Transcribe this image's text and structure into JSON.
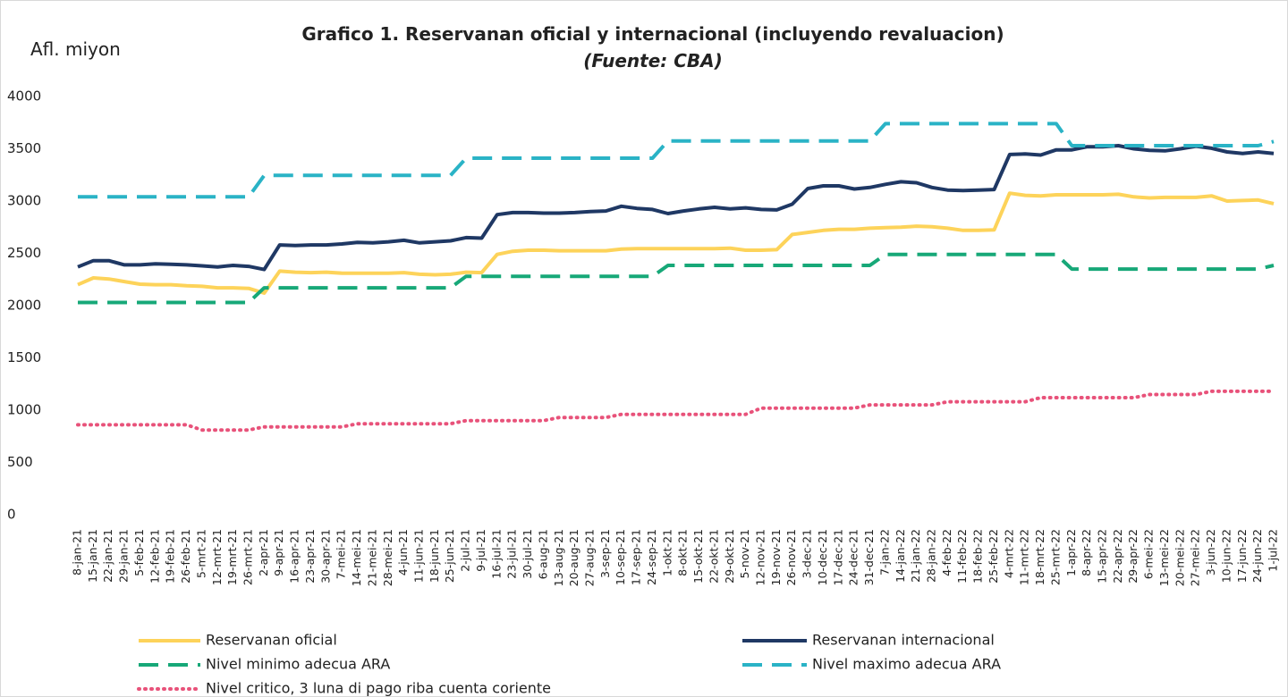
{
  "chart_data": {
    "type": "line",
    "title": "Grafico 1. Reservanan oficial y internacional (incluyendo revaluacion)",
    "subtitle": "(Fuente: CBA)",
    "y_label": "Afl. miyon",
    "categories": [
      "8-jan-21",
      "15-jan-21",
      "22-jan-21",
      "29-jan-21",
      "5-feb-21",
      "12-feb-21",
      "19-feb-21",
      "26-feb-21",
      "5-mrt-21",
      "12-mrt-21",
      "19-mrt-21",
      "26-mrt-21",
      "2-apr-21",
      "9-apr-21",
      "16-apr-21",
      "23-apr-21",
      "30-apr-21",
      "7-mei-21",
      "14-mei-21",
      "21-mei-21",
      "28-mei-21",
      "4-jun-21",
      "11-jun-21",
      "18-jun-21",
      "25-jun-21",
      "2-jul-21",
      "9-jul-21",
      "16-jul-21",
      "23-jul-21",
      "30-jul-21",
      "6-aug-21",
      "13-aug-21",
      "20-aug-21",
      "27-aug-21",
      "3-sep-21",
      "10-sep-21",
      "17-sep-21",
      "24-sep-21",
      "1-okt-21",
      "8-okt-21",
      "15-okt-21",
      "22-okt-21",
      "29-okt-21",
      "5-nov-21",
      "12-nov-21",
      "19-nov-21",
      "26-nov-21",
      "3-dec-21",
      "10-dec-21",
      "17-dec-21",
      "24-dec-21",
      "31-dec-21",
      "7-jan-22",
      "14-jan-22",
      "21-jan-22",
      "28-jan-22",
      "4-feb-22",
      "11-feb-22",
      "18-feb-22",
      "25-feb-22",
      "4-mrt-22",
      "11-mrt-22",
      "18-mrt-22",
      "25-mrt-22",
      "1-apr-22",
      "8-apr-22",
      "15-apr-22",
      "22-apr-22",
      "29-apr-22",
      "6-mei-22",
      "13-mei-22",
      "20-mei-22",
      "27-mei-22",
      "3-jun-22",
      "10-jun-22",
      "17-jun-22",
      "24-jun-22",
      "1-jul-22"
    ],
    "series": [
      {
        "name": "Reservanan oficial",
        "color": "#fdd35a",
        "dash": "solid",
        "values": [
          2200,
          2265,
          2255,
          2230,
          2205,
          2200,
          2200,
          2190,
          2185,
          2170,
          2170,
          2165,
          2120,
          2330,
          2320,
          2315,
          2320,
          2310,
          2310,
          2310,
          2310,
          2315,
          2300,
          2295,
          2300,
          2320,
          2315,
          2490,
          2520,
          2530,
          2530,
          2525,
          2525,
          2525,
          2525,
          2540,
          2545,
          2545,
          2545,
          2545,
          2545,
          2545,
          2550,
          2530,
          2530,
          2535,
          2680,
          2700,
          2720,
          2730,
          2730,
          2740,
          2745,
          2750,
          2760,
          2755,
          2740,
          2720,
          2720,
          2725,
          3075,
          3055,
          3050,
          3060,
          3060,
          3060,
          3060,
          3065,
          3040,
          3030,
          3035,
          3035,
          3035,
          3050,
          3000,
          3005,
          3010,
          2975
        ]
      },
      {
        "name": "Reservanan internacional",
        "color": "#1f3864",
        "dash": "solid",
        "values": [
          2370,
          2430,
          2430,
          2390,
          2390,
          2400,
          2395,
          2390,
          2380,
          2370,
          2385,
          2375,
          2345,
          2580,
          2575,
          2580,
          2580,
          2590,
          2605,
          2600,
          2610,
          2625,
          2600,
          2610,
          2620,
          2650,
          2645,
          2870,
          2890,
          2890,
          2885,
          2885,
          2890,
          2900,
          2905,
          2950,
          2930,
          2920,
          2880,
          2905,
          2925,
          2940,
          2925,
          2935,
          2920,
          2915,
          2970,
          3120,
          3145,
          3145,
          3115,
          3130,
          3160,
          3185,
          3175,
          3130,
          3105,
          3100,
          3105,
          3110,
          3445,
          3450,
          3440,
          3490,
          3490,
          3520,
          3520,
          3530,
          3500,
          3485,
          3480,
          3500,
          3525,
          3505,
          3470,
          3455,
          3470,
          3455
        ]
      },
      {
        "name": "Nivel minimo adecua ARA",
        "color": "#17a878",
        "dash": "dashed",
        "values": [
          2030,
          2030,
          2030,
          2030,
          2030,
          2030,
          2030,
          2030,
          2030,
          2030,
          2030,
          2030,
          2170,
          2170,
          2170,
          2170,
          2170,
          2170,
          2170,
          2170,
          2170,
          2170,
          2170,
          2170,
          2170,
          2280,
          2280,
          2280,
          2280,
          2280,
          2280,
          2280,
          2280,
          2280,
          2280,
          2280,
          2280,
          2280,
          2385,
          2385,
          2385,
          2385,
          2385,
          2385,
          2385,
          2385,
          2385,
          2385,
          2385,
          2385,
          2385,
          2385,
          2490,
          2490,
          2490,
          2490,
          2490,
          2490,
          2490,
          2490,
          2490,
          2490,
          2490,
          2490,
          2350,
          2350,
          2350,
          2350,
          2350,
          2350,
          2350,
          2350,
          2350,
          2350,
          2350,
          2350,
          2350,
          2385
        ]
      },
      {
        "name": "Nivel maximo adecua ARA",
        "color": "#2ab3c6",
        "dash": "dashed",
        "values": [
          3040,
          3040,
          3040,
          3040,
          3040,
          3040,
          3040,
          3040,
          3040,
          3040,
          3040,
          3040,
          3245,
          3245,
          3245,
          3245,
          3245,
          3245,
          3245,
          3245,
          3245,
          3245,
          3245,
          3245,
          3245,
          3410,
          3410,
          3410,
          3410,
          3410,
          3410,
          3410,
          3410,
          3410,
          3410,
          3410,
          3410,
          3410,
          3575,
          3575,
          3575,
          3575,
          3575,
          3575,
          3575,
          3575,
          3575,
          3575,
          3575,
          3575,
          3575,
          3575,
          3740,
          3740,
          3740,
          3740,
          3740,
          3740,
          3740,
          3740,
          3740,
          3740,
          3740,
          3740,
          3530,
          3530,
          3530,
          3530,
          3530,
          3530,
          3530,
          3530,
          3530,
          3530,
          3530,
          3530,
          3530,
          3570
        ]
      },
      {
        "name": "Nivel critico, 3 luna di pago riba cuenta coriente",
        "color": "#e8527a",
        "dash": "dotted",
        "values": [
          860,
          860,
          860,
          860,
          860,
          860,
          860,
          860,
          810,
          810,
          810,
          810,
          840,
          840,
          840,
          840,
          840,
          840,
          870,
          870,
          870,
          870,
          870,
          870,
          870,
          900,
          900,
          900,
          900,
          900,
          900,
          930,
          930,
          930,
          930,
          960,
          960,
          960,
          960,
          960,
          960,
          960,
          960,
          960,
          1020,
          1020,
          1020,
          1020,
          1020,
          1020,
          1020,
          1050,
          1050,
          1050,
          1050,
          1050,
          1080,
          1080,
          1080,
          1080,
          1080,
          1080,
          1120,
          1120,
          1120,
          1120,
          1120,
          1120,
          1120,
          1150,
          1150,
          1150,
          1150,
          1180,
          1180,
          1180,
          1180,
          1180
        ]
      }
    ],
    "ylim": [
      0,
      4000
    ],
    "yticks": [
      0,
      500,
      1000,
      1500,
      2000,
      2500,
      3000,
      3500,
      4000
    ],
    "grid": false,
    "legend": "bottom"
  }
}
